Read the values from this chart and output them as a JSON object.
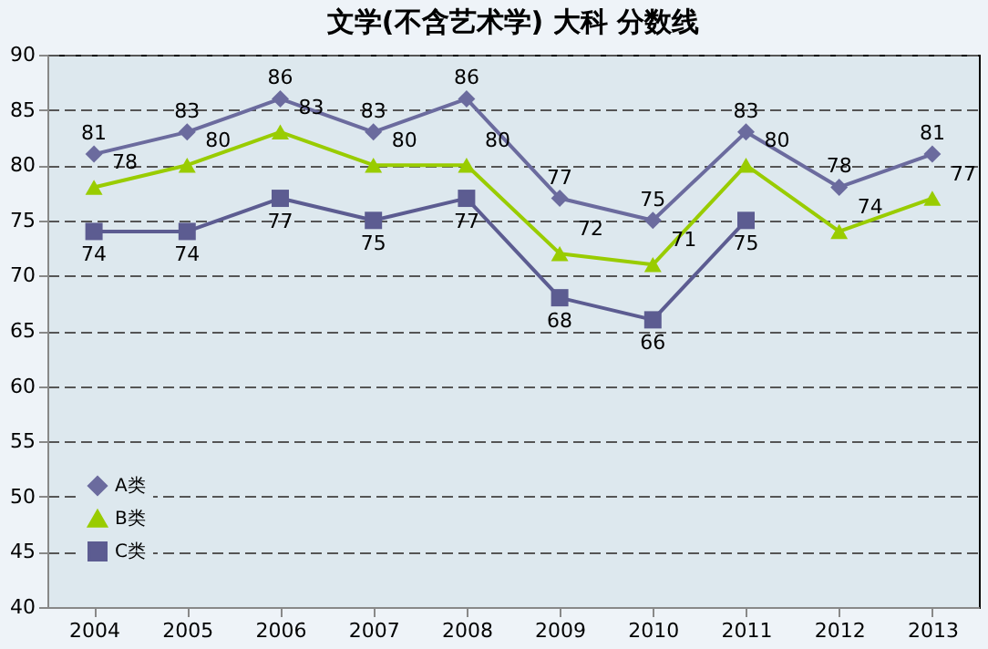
{
  "chart_data": {
    "type": "line",
    "title": "文学(不含艺术学)    大科    分数线",
    "categories": [
      "2004",
      "2005",
      "2006",
      "2007",
      "2008",
      "2009",
      "2010",
      "2011",
      "2012",
      "2013"
    ],
    "series": [
      {
        "name": "A类",
        "color": "#6b6b9e",
        "marker": "diamond",
        "values": [
          81,
          83,
          86,
          83,
          86,
          77,
          75,
          83,
          78,
          81
        ]
      },
      {
        "name": "B类",
        "color": "#99cc00",
        "marker": "triangle",
        "values": [
          78,
          80,
          83,
          80,
          80,
          72,
          71,
          80,
          74,
          77
        ]
      },
      {
        "name": "C类",
        "color": "#5c5c91",
        "marker": "square",
        "values": [
          74,
          74,
          77,
          75,
          77,
          68,
          66,
          75,
          null,
          null
        ]
      }
    ],
    "ylim": [
      40,
      90
    ],
    "yticks": [
      40,
      45,
      50,
      55,
      60,
      65,
      70,
      75,
      80,
      85,
      90
    ],
    "grid": "y",
    "legend": "bottom left",
    "data_labels": true,
    "line_style": "solid"
  }
}
